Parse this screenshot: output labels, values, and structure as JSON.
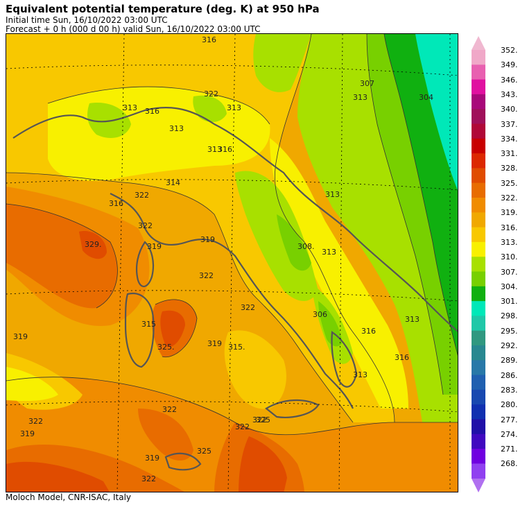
{
  "header": {
    "title": "Equivalent potential temperature (deg. K) at 950 hPa",
    "initial_time": "Initial time  Sun, 16/10/2022  03:00 UTC",
    "forecast": "Forecast  +   0 h  (000 d 00 h)  valid Sun, 16/10/2022 03:00 UTC"
  },
  "footer": "Moloch Model, CNR-ISAC, Italy",
  "colorbar": {
    "levels": [
      "352.",
      "349.",
      "346.",
      "343.",
      "340.",
      "337.",
      "334.",
      "331.",
      "328.",
      "325.",
      "322.",
      "319.",
      "316.",
      "313.",
      "310.",
      "307.",
      "304.",
      "301.",
      "298.",
      "295.",
      "292.",
      "289.",
      "286.",
      "283.",
      "280.",
      "277.",
      "274.",
      "271.",
      "268."
    ],
    "colors": [
      "#f0a8c8",
      "#e860b0",
      "#e010a0",
      "#a8087a",
      "#a0105a",
      "#b00838",
      "#c80000",
      "#dc2800",
      "#e04c00",
      "#e86c00",
      "#f08c00",
      "#f0a800",
      "#f8c800",
      "#f8f000",
      "#a8e000",
      "#78d000",
      "#10b010",
      "#00e8b8",
      "#20c8a8",
      "#309880",
      "#288890",
      "#2878a8",
      "#2060b0",
      "#1848b0",
      "#1030b0",
      "#2010a8",
      "#4008c0",
      "#7000e0",
      "#9040f0"
    ],
    "top_arrow_color": "#f0b8d0",
    "bottom_arrow_color": "#b070f0"
  },
  "map": {
    "contour_labels": [
      "316",
      "316",
      "313",
      "313",
      "313",
      "316",
      "316",
      "314",
      "322",
      "322",
      "329.",
      "322",
      "319",
      "319",
      "319",
      "313",
      "313",
      "308.",
      "313",
      "313",
      "313",
      "322",
      "322",
      "315",
      "325.",
      "319",
      "315.",
      "306",
      "316",
      "316",
      "313",
      "319",
      "304",
      "307",
      "322",
      "322",
      "325",
      "322",
      "325",
      "319",
      "322",
      "322"
    ]
  }
}
